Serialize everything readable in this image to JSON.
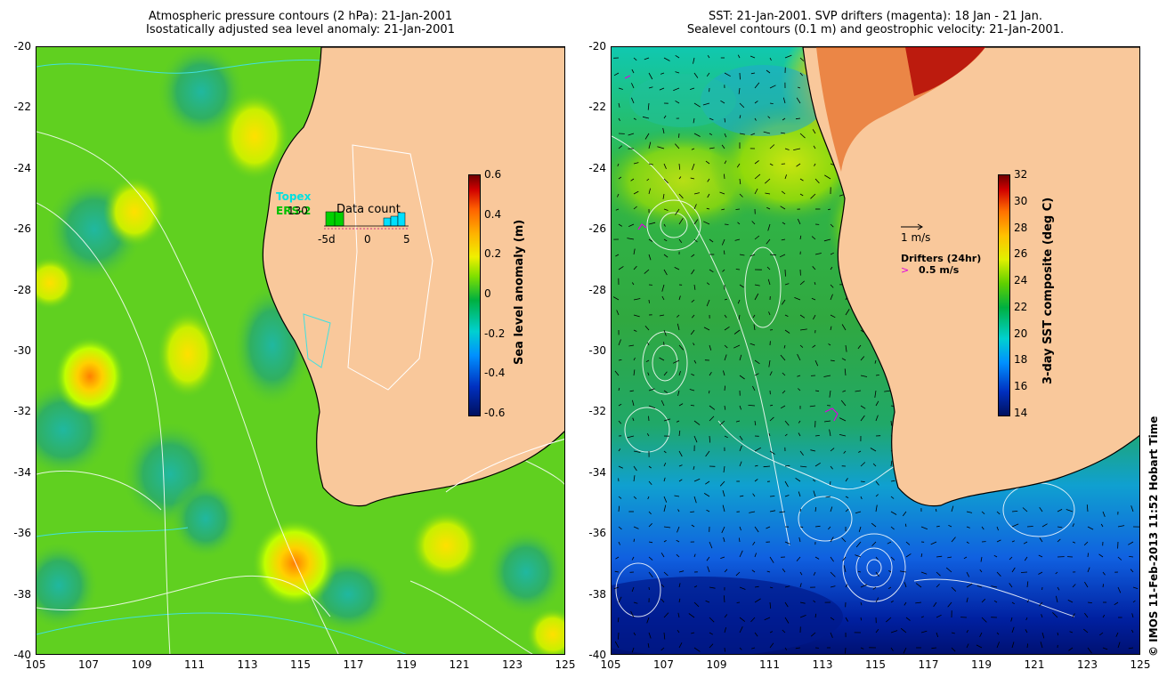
{
  "left_panel": {
    "title_line1": "Atmospheric pressure contours (2 hPa): 21-Jan-2001",
    "title_line2": "Isostatically adjusted sea level anomaly: 21-Jan-2001",
    "colorbar_label": "Sea level anomaly (m)",
    "colorbar_ticks": [
      "0.6",
      "0.4",
      "0.2",
      "0",
      "-0.2",
      "-0.4",
      "-0.6"
    ],
    "satellites": [
      {
        "name": "Topex",
        "color": "#00e0e0"
      },
      {
        "name": "ERS-2",
        "color": "#00c000"
      }
    ],
    "overlap_number": "130",
    "data_count": {
      "title": "Data count",
      "axis_labels": [
        "-5d",
        "0",
        "5"
      ]
    }
  },
  "right_panel": {
    "title_line1": "SST: 21-Jan-2001. SVP drifters (magenta): 18 Jan - 21 Jan.",
    "title_line2": "Sealevel contours (0.1 m) and geostrophic velocity: 21-Jan-2001.",
    "colorbar_label": "3-day SST composite (deg C)",
    "colorbar_ticks": [
      "32",
      "30",
      "28",
      "26",
      "24",
      "22",
      "20",
      "18",
      "16",
      "14"
    ],
    "velocity_scale": "1 m/s",
    "drifter_label": "Drifters (24hr)",
    "drifter_scale": "0.5 m/s"
  },
  "latitude_ticks": [
    "-20",
    "-22",
    "-24",
    "-26",
    "-28",
    "-30",
    "-32",
    "-34",
    "-36",
    "-38",
    "-40"
  ],
  "longitude_ticks": [
    "105",
    "107",
    "109",
    "111",
    "113",
    "115",
    "117",
    "119",
    "121",
    "123",
    "125"
  ],
  "credit": "© IMOS 11-Feb-2013 11:52 Hobart Time",
  "colors": {
    "land": "#f9c89b",
    "sla_background": "#60d020",
    "sst_background": "#20b040",
    "contour": "#ffffff",
    "pressure_contour": "#40e0e0"
  }
}
